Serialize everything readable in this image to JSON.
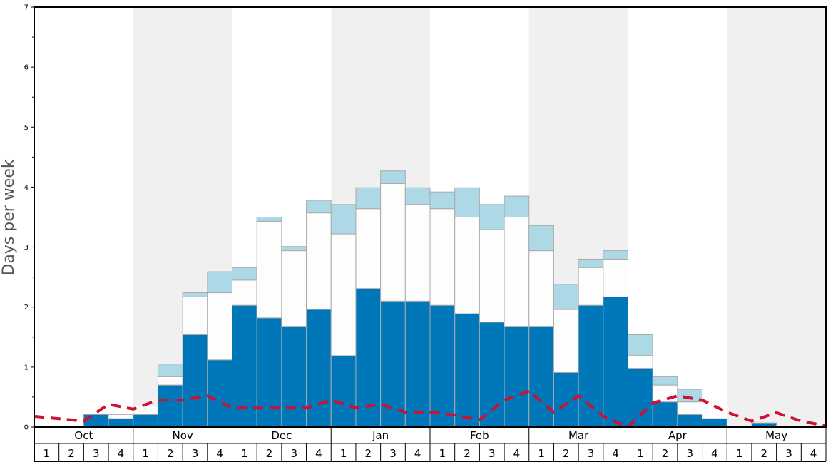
{
  "chart_data": {
    "type": "bar",
    "ylabel": "Days per week",
    "ylim": [
      0,
      7
    ],
    "y_ticks": [
      "0",
      "1",
      "2",
      "3",
      "4",
      "5",
      "6",
      "7"
    ],
    "months": [
      "Oct",
      "Nov",
      "Dec",
      "Jan",
      "Feb",
      "Mar",
      "Apr",
      "May"
    ],
    "week_labels": [
      "1",
      "2",
      "3",
      "4"
    ],
    "stacked": true,
    "series_colors": [
      "#0077b9",
      "#fdfdfd",
      "#add8e6"
    ],
    "trend_color": "#cc1133",
    "band_color": "#f0f0f0",
    "series": [
      {
        "values": [
          0,
          0,
          0.21,
          0.14,
          0.21,
          0.7,
          1.54,
          1.12,
          2.03,
          1.82,
          1.68,
          1.96,
          1.19,
          2.31,
          2.1,
          2.1,
          2.03,
          1.89,
          1.75,
          1.68,
          1.68,
          0.91,
          2.03,
          2.17,
          0.98,
          0.42,
          0.21,
          0.14,
          0,
          0.07,
          0,
          0
        ]
      },
      {
        "values": [
          0,
          0,
          0,
          0.07,
          0.14,
          0.14,
          0.63,
          1.12,
          0.42,
          1.61,
          1.26,
          1.61,
          2.03,
          1.33,
          1.96,
          1.61,
          1.61,
          1.61,
          1.54,
          1.82,
          1.26,
          1.05,
          0.63,
          0.63,
          0.21,
          0.28,
          0.21,
          0,
          0,
          0,
          0,
          0
        ]
      },
      {
        "values": [
          0,
          0,
          0,
          0,
          0,
          0.21,
          0.07,
          0.35,
          0.21,
          0.07,
          0.07,
          0.21,
          0.49,
          0.35,
          0.21,
          0.28,
          0.28,
          0.49,
          0.42,
          0.35,
          0.42,
          0.42,
          0.14,
          0.14,
          0.35,
          0.14,
          0.21,
          0,
          0,
          0,
          0,
          0
        ]
      }
    ],
    "trend": [
      0.18,
      0.14,
      0.1,
      0.38,
      0.3,
      0.45,
      0.45,
      0.52,
      0.32,
      0.32,
      0.32,
      0.32,
      0.45,
      0.32,
      0.38,
      0.25,
      0.25,
      0.2,
      0.12,
      0.45,
      0.6,
      0.25,
      0.52,
      0.18,
      0.0,
      0.4,
      0.52,
      0.45,
      0.25,
      0.1,
      0.24,
      0.1,
      0.02
    ]
  }
}
